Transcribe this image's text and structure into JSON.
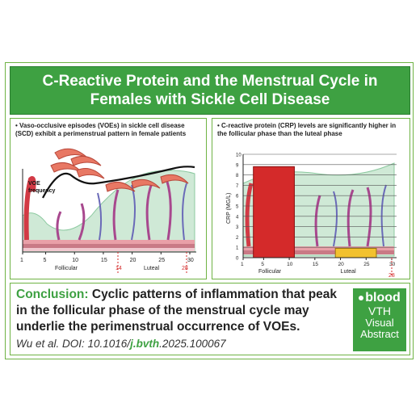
{
  "header": {
    "title": "C-Reactive Protein and the Menstrual Cycle in Females with Sickle Cell Disease"
  },
  "left_panel": {
    "text": "• Vaso-occlusive episodes (VOEs) in sickle cell disease (SCD) exhibit a perimenstrual pattern in female patients",
    "y_label_line1": "VOE",
    "y_label_line2": "frequency",
    "x_ticks": [
      "1",
      "5",
      "10",
      "15",
      "20",
      "25",
      "30"
    ],
    "marker_day": "14",
    "marker_day_end": "28",
    "phase_follicular": "Follicular",
    "phase_luteal": "Luteal"
  },
  "right_panel": {
    "text": "• C-reactive protein (CRP) levels are significantly higher in the follicular phase than the luteal phase",
    "colors": {
      "follicular_bar": "#d42a2a",
      "luteal_bar": "#f2c12e"
    },
    "chart_data": {
      "type": "bar",
      "ylabel": "CRP (MG/L)",
      "ylim": [
        0,
        10
      ],
      "x_ticks": [
        "1",
        "5",
        "10",
        "15",
        "20",
        "25",
        "30"
      ],
      "categories": [
        "Follicular",
        "Luteal"
      ],
      "values": [
        8.8,
        0.9
      ],
      "x_ranges": [
        [
          3,
          11
        ],
        [
          19,
          27
        ]
      ],
      "y_ticks": [
        "0",
        "1",
        "2",
        "3",
        "4",
        "5",
        "6",
        "7",
        "8",
        "9",
        "10"
      ],
      "marker_day": "28"
    }
  },
  "conclusion": {
    "label": "Conclusion:",
    "text": " Cyclic patterns of inflammation that peak in the follicular phase of the menstrual cycle may underlie the perimenstrual occurrence of VOEs.",
    "citation_prefix": "Wu et al. DOI: 10.1016/",
    "citation_strong": "j.bvth",
    "citation_suffix": ".2025.100067"
  },
  "badge": {
    "logo": "blood",
    "line1": "VTH",
    "line2": "Visual",
    "line3": "Abstract"
  }
}
